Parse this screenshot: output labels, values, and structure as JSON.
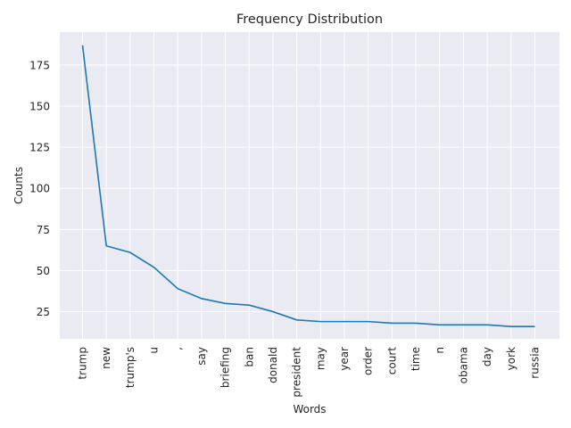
{
  "chart_data": {
    "type": "line",
    "title": "Frequency Distribution",
    "xlabel": "Words",
    "ylabel": "Counts",
    "categories": [
      "trump",
      "new",
      "trump's",
      "u",
      ",",
      "say",
      "briefing",
      "ban",
      "donald",
      "president",
      "may",
      "year",
      "order",
      "court",
      "time",
      "n",
      "obama",
      "day",
      "york",
      "russia"
    ],
    "series": [
      {
        "values": [
          187,
          65,
          61,
          52,
          39,
          33,
          30,
          29,
          25,
          20,
          19,
          19,
          19,
          18,
          18,
          17,
          17,
          17,
          16,
          16
        ]
      }
    ],
    "yticks": [
      25,
      50,
      75,
      100,
      125,
      150,
      175
    ],
    "ylim": [
      8.5,
      195
    ],
    "grid": true,
    "line_color": "#1f77b4",
    "background_color": "#eaeaf2",
    "grid_color": "#ffffff"
  }
}
